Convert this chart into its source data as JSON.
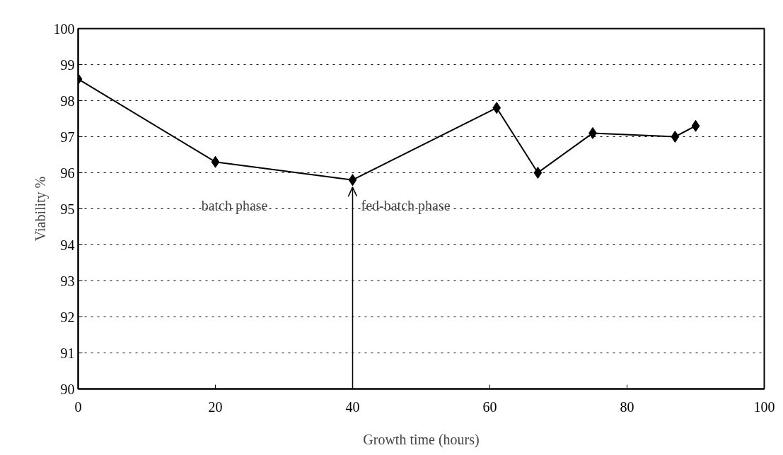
{
  "chart_data": {
    "type": "line",
    "xlabel": "Growth time (hours)",
    "ylabel": "Viability %",
    "x": [
      0,
      20,
      40,
      61,
      67,
      75,
      87,
      90
    ],
    "series": [
      {
        "color": "#000000",
        "values": [
          98.6,
          96.3,
          95.8,
          97.8,
          96.0,
          97.1,
          97.0,
          97.3
        ]
      }
    ],
    "marker": "diamond",
    "line_style": "solid",
    "xlim": [
      0,
      100
    ],
    "xticks": [
      0,
      20,
      40,
      60,
      80,
      100
    ],
    "ylim": [
      90,
      100
    ],
    "yticks": [
      90,
      91,
      92,
      93,
      94,
      95,
      96,
      97,
      98,
      99,
      100
    ],
    "grid": "y",
    "ref_lines": [
      {
        "axis": "x",
        "value": 40,
        "label": null
      }
    ],
    "annotations": [
      "batch phase",
      "fed-batch phase"
    ]
  }
}
